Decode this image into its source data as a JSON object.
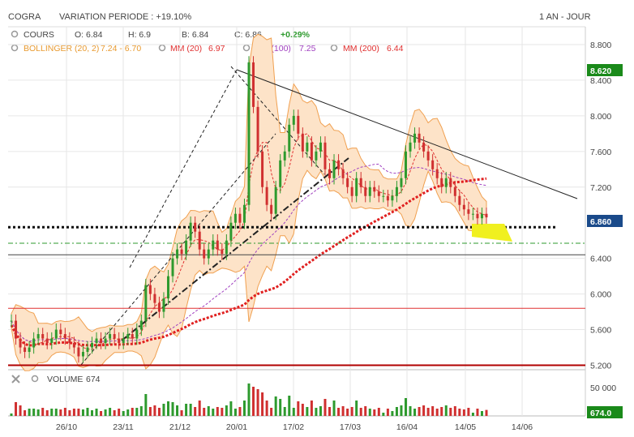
{
  "header": {
    "symbol": "COGRA",
    "variation": "VARIATION PERIODE : +19.10%",
    "period": "1 AN - JOUR"
  },
  "legend": {
    "cours_label": "COURS",
    "open": "O: 6.84",
    "high": "H: 6.9",
    "low": "B: 6.84",
    "close": "C: 6.86",
    "change": "+0.29%",
    "bollinger": "BOLLINGER (20, 2)",
    "bollinger_vals": "7.24 - 6.70",
    "mm20": "MM (20)",
    "mm20_val": "6.97",
    "mm100": "MM (100)",
    "mm100_val": "7.25",
    "mm200": "MM (200)",
    "mm200_val": "6.44",
    "volume_label": "VOLUME",
    "volume_val": "674"
  },
  "colors": {
    "up": "#2e9a2e",
    "down": "#d03030",
    "bollinger": "#f0a050",
    "bollinger_fill": "#fde3c8",
    "mm20": "#e03030",
    "mm100": "#a040c0",
    "mm200": "#e02020",
    "last_price_badge": "#1a8a1a",
    "current_price_badge": "#1a4a8a",
    "highlight": "#f0f020",
    "change_positive": "#2e9a2e"
  },
  "chart_data": {
    "type": "candlestick",
    "ylim": [
      5.15,
      9.0
    ],
    "yticks": [
      "8.800",
      "8.400",
      "8.000",
      "7.600",
      "7.200",
      "6.400",
      "6.000",
      "5.600",
      "5.200"
    ],
    "xticks": [
      "26/10",
      "23/11",
      "21/12",
      "20/01",
      "17/02",
      "17/03",
      "16/04",
      "14/05",
      "14/06"
    ],
    "price_badges": {
      "high": "8.620",
      "current": "6.860"
    },
    "volume": {
      "tick": "50 000",
      "badge": "674.0"
    },
    "close_series": [
      5.7,
      5.5,
      5.4,
      5.35,
      5.4,
      5.5,
      5.55,
      5.5,
      5.45,
      5.5,
      5.6,
      5.55,
      5.5,
      5.45,
      5.4,
      5.3,
      5.35,
      5.4,
      5.45,
      5.5,
      5.45,
      5.5,
      5.55,
      5.5,
      5.45,
      5.5,
      5.55,
      5.5,
      5.6,
      5.7,
      6.1,
      6.0,
      5.9,
      5.8,
      5.95,
      6.2,
      6.4,
      6.5,
      6.45,
      6.6,
      6.8,
      6.7,
      6.5,
      6.4,
      6.5,
      6.6,
      6.5,
      6.45,
      6.6,
      6.8,
      6.9,
      6.8,
      7.0,
      8.6,
      8.1,
      7.6,
      7.2,
      7.0,
      6.9,
      7.2,
      7.5,
      7.6,
      7.9,
      8.0,
      7.8,
      7.6,
      7.7,
      7.5,
      7.6,
      7.7,
      7.4,
      7.3,
      7.5,
      7.4,
      7.3,
      7.2,
      7.1,
      7.3,
      7.2,
      7.1,
      7.2,
      7.15,
      7.1,
      7.1,
      7.05,
      7.1,
      7.2,
      7.3,
      7.6,
      7.7,
      7.8,
      7.7,
      7.6,
      7.5,
      7.4,
      7.3,
      7.2,
      7.3,
      7.2,
      7.1,
      7.0,
      6.95,
      6.9,
      6.9,
      6.85,
      6.9,
      6.86
    ]
  }
}
